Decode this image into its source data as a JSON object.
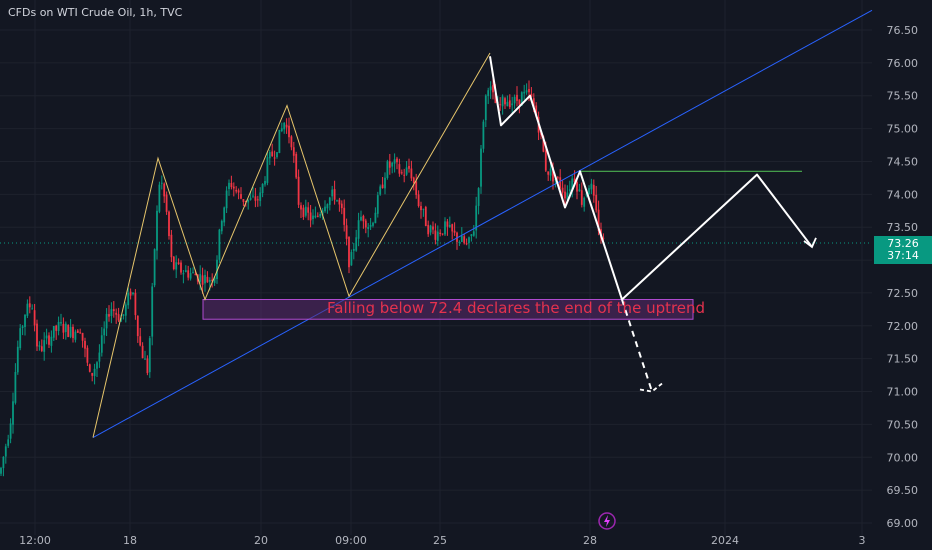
{
  "header": {
    "title": "CFDs on WTI Crude Oil, 1h, TVC"
  },
  "price_badge": {
    "price": "73.26",
    "countdown": "37:14"
  },
  "annotation": {
    "text": "Falling below 72.4 declares the end of the uptrend"
  },
  "colors": {
    "background": "#131722",
    "up": "#089981",
    "down": "#f23645",
    "trendline": "#2962ff",
    "zigzag": "#e6c56b",
    "resistance": "#4caf50",
    "zone_fill": "#5b2a6e",
    "zone_border": "#b04ad0",
    "forecast": "#ffffff",
    "label_red": "#e5324e"
  },
  "chart_data": {
    "type": "candlestick",
    "y_axis": {
      "min": 69.0,
      "max": 76.8,
      "ticks": [
        "76.50",
        "76.00",
        "75.50",
        "75.00",
        "74.50",
        "74.00",
        "73.50",
        "73.00",
        "72.50",
        "72.00",
        "71.50",
        "71.00",
        "70.50",
        "70.00",
        "69.50",
        "69.00"
      ]
    },
    "x_axis": {
      "ticks": [
        "12:00",
        "18",
        "20",
        "09:00",
        "25",
        "28",
        "2024",
        "3"
      ]
    },
    "trendline": {
      "from": [
        0.0,
        70.3
      ],
      "to": [
        1.0,
        76.8
      ]
    },
    "zigzag": [
      [
        0.0,
        70.3
      ],
      [
        0.195,
        74.55
      ],
      [
        0.345,
        72.4
      ],
      [
        0.545,
        75.35
      ],
      [
        0.72,
        72.45
      ],
      [
        1.0,
        76.15
      ]
    ],
    "resistance_level": 74.35,
    "zone": {
      "low": 72.1,
      "high": 72.4
    },
    "forecast_path": [
      [
        0.0,
        76.1
      ],
      [
        0.028,
        75.05
      ],
      [
        0.08,
        75.5
      ],
      [
        0.165,
        73.8
      ],
      [
        0.21,
        74.35
      ],
      [
        0.285,
        72.4
      ],
      [
        0.585,
        74.3
      ],
      [
        0.72,
        73.2
      ]
    ],
    "forecast_dashed": [
      [
        0.285,
        72.4
      ],
      [
        0.33,
        71.0
      ],
      [
        0.38,
        71.05
      ]
    ],
    "last_price": 73.26
  }
}
